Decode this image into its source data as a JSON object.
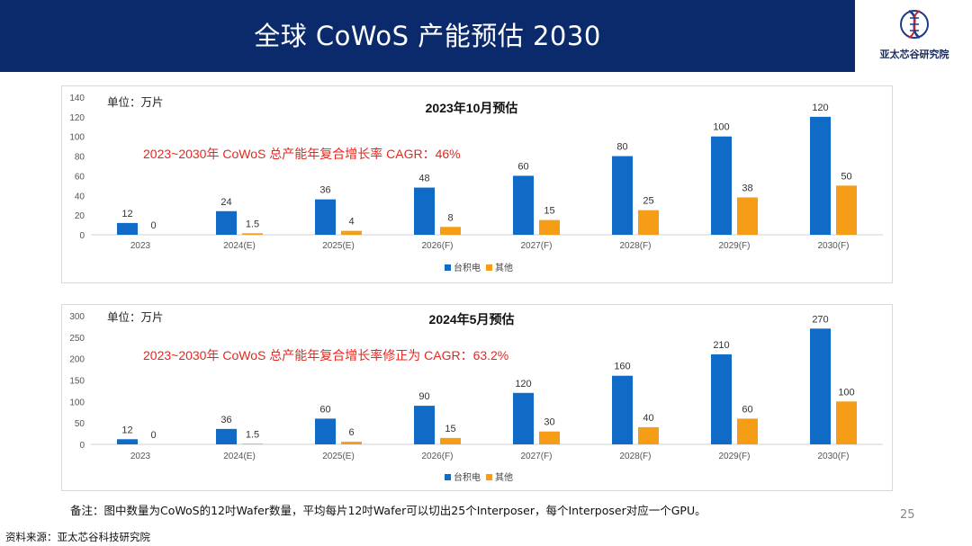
{
  "header": {
    "title": "全球 CoWoS 产能预估 2030"
  },
  "logo": {
    "text": "亚太芯谷研究院",
    "icon": "dna-helix-logo-icon"
  },
  "colors": {
    "tsmc": "#0f6bc6",
    "others": "#f59d17",
    "cagr": "#e8261e",
    "header_bg": "#0b2a6b"
  },
  "chart_data": [
    {
      "type": "bar",
      "title": "2023年10月预估",
      "unit_label": "单位：万片",
      "annotation": "2023~2030年 CoWoS 总产能年复合增长率 CAGR：46%",
      "categories": [
        "2023",
        "2024(E)",
        "2025(E)",
        "2026(F)",
        "2027(F)",
        "2028(F)",
        "2029(F)",
        "2030(F)"
      ],
      "series": [
        {
          "name": "台积电",
          "values": [
            12,
            24,
            36,
            48,
            60,
            80,
            100,
            120
          ]
        },
        {
          "name": "其他",
          "values": [
            0,
            1.5,
            4,
            8,
            15,
            25,
            38,
            50
          ]
        }
      ],
      "ylim": [
        0,
        140
      ],
      "yticks": [
        0,
        20,
        40,
        60,
        80,
        100,
        120,
        140
      ],
      "grid": false,
      "legend": "bottom-center"
    },
    {
      "type": "bar",
      "title": "2024年5月预估",
      "unit_label": "单位：万片",
      "annotation": "2023~2030年 CoWoS 总产能年复合增长率修正为 CAGR：63.2%",
      "categories": [
        "2023",
        "2024(E)",
        "2025(E)",
        "2026(F)",
        "2027(F)",
        "2028(F)",
        "2029(F)",
        "2030(F)"
      ],
      "series": [
        {
          "name": "台积电",
          "values": [
            12,
            36,
            60,
            90,
            120,
            160,
            210,
            270
          ]
        },
        {
          "name": "其他",
          "values": [
            0,
            1.5,
            6,
            15,
            30,
            40,
            60,
            100
          ]
        }
      ],
      "ylim": [
        0,
        300
      ],
      "yticks": [
        0,
        50,
        100,
        150,
        200,
        250,
        300
      ],
      "grid": false,
      "legend": "bottom-center"
    }
  ],
  "note": "备注：图中数量为CoWoS的12吋Wafer数量，平均每片12吋Wafer可以切出25个Interposer，每个Interposer对应一个GPU。",
  "source": "资料来源：亚太芯谷科技研究院",
  "page_number": "25"
}
